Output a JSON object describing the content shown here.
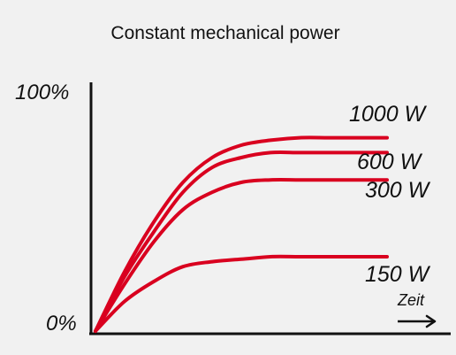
{
  "chart_data": {
    "type": "line",
    "title": "Constant mechanical power",
    "xlabel": "Zeit",
    "ylabel": "",
    "y_tick_labels": [
      "100%",
      "0%"
    ],
    "ylim": [
      0,
      100
    ],
    "xlim": [
      0,
      1
    ],
    "grid": false,
    "legend": "inline labels at right end of each curve",
    "line_color": "#d9001f",
    "series": [
      {
        "name": "1000 W",
        "x": [
          0,
          0.1,
          0.2,
          0.3,
          0.4,
          0.5,
          0.6,
          0.7,
          0.8,
          0.9,
          1.0
        ],
        "values": [
          0,
          24,
          44,
          60,
          70,
          75,
          77,
          78,
          78,
          78,
          78
        ]
      },
      {
        "name": "600 W",
        "x": [
          0,
          0.1,
          0.2,
          0.3,
          0.4,
          0.5,
          0.6,
          0.7,
          0.8,
          0.9,
          1.0
        ],
        "values": [
          0,
          22,
          40,
          56,
          66,
          70,
          72,
          72,
          72,
          72,
          72
        ]
      },
      {
        "name": "300 W",
        "x": [
          0,
          0.1,
          0.2,
          0.3,
          0.4,
          0.5,
          0.6,
          0.7,
          0.8,
          0.9,
          1.0
        ],
        "values": [
          0,
          19,
          36,
          49,
          56,
          60,
          61,
          61,
          61,
          61,
          61
        ]
      },
      {
        "name": "150 W",
        "x": [
          0,
          0.1,
          0.2,
          0.3,
          0.4,
          0.5,
          0.6,
          0.7,
          0.8,
          0.9,
          1.0
        ],
        "values": [
          0,
          12,
          20,
          26,
          28,
          29,
          30,
          30,
          30,
          30,
          30
        ]
      }
    ]
  }
}
